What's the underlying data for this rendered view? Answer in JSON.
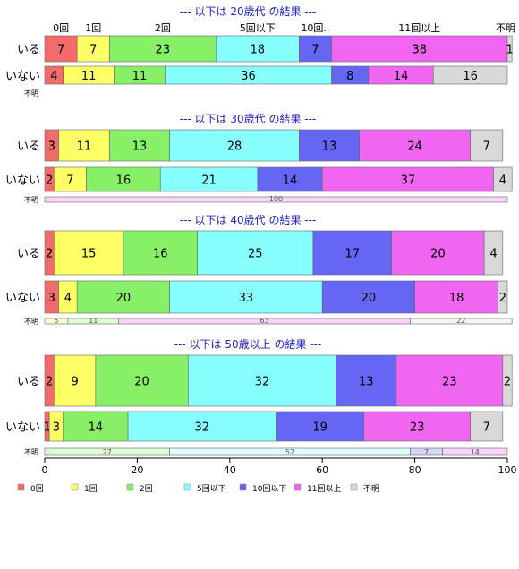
{
  "chart_data": {
    "type": "bar",
    "stacked": "percent",
    "orientation": "horizontal",
    "xlim": [
      0,
      100
    ],
    "x_ticks": [
      0,
      20,
      40,
      60,
      80,
      100
    ],
    "category_header": [
      "0回",
      "1回",
      "2回",
      "5回以下",
      "10回..",
      "11回以上",
      "不明"
    ],
    "legend": {
      "placement": "bottom-left",
      "entries": [
        "0回",
        "1回",
        "2回",
        "5回以下",
        "10回以下",
        "11回以上",
        "不明"
      ]
    },
    "colors": [
      "#f46b6b",
      "#ffff66",
      "#88f066",
      "#88ffff",
      "#6666f4",
      "#f066f0",
      "#d9d9d9"
    ],
    "groups": [
      {
        "title": "--- 以下は 20歳代 の結果 ---",
        "rows": [
          {
            "label": "いる",
            "values": [
              7,
              7,
              23,
              18,
              7,
              38,
              1
            ],
            "thin": false
          },
          {
            "label": "いない",
            "values": [
              4,
              11,
              11,
              36,
              8,
              14,
              16
            ],
            "thin": false
          },
          {
            "label": "不明",
            "values": [],
            "thin": true
          }
        ]
      },
      {
        "title": "--- 以下は 30歳代 の結果 ---",
        "rows": [
          {
            "label": "いる",
            "values": [
              3,
              11,
              13,
              28,
              13,
              24,
              7
            ],
            "thin": false
          },
          {
            "label": "いない",
            "values": [
              2,
              7,
              16,
              21,
              14,
              37,
              4
            ],
            "thin": false
          },
          {
            "label": "不明",
            "values": [
              0,
              0,
              0,
              0,
              0,
              100,
              0
            ],
            "thin": true
          }
        ]
      },
      {
        "title": "--- 以下は 40歳代 の結果 ---",
        "rows": [
          {
            "label": "いる",
            "values": [
              2,
              15,
              16,
              25,
              17,
              20,
              4
            ],
            "thin": false
          },
          {
            "label": "いない",
            "values": [
              3,
              4,
              20,
              33,
              20,
              18,
              2
            ],
            "thin": false
          },
          {
            "label": "不明",
            "values": [
              0,
              5,
              11,
              0,
              0,
              63,
              22
            ],
            "thin": true
          }
        ]
      },
      {
        "title": "--- 以下は 50歳以上 の結果 ---",
        "rows": [
          {
            "label": "いる",
            "values": [
              2,
              9,
              20,
              32,
              13,
              23,
              2
            ],
            "thin": false
          },
          {
            "label": "いない",
            "values": [
              1,
              3,
              14,
              32,
              19,
              23,
              7
            ],
            "thin": false
          },
          {
            "label": "不明",
            "values": [
              0,
              0,
              27,
              52,
              7,
              14,
              0
            ],
            "thin": true
          }
        ]
      }
    ]
  }
}
